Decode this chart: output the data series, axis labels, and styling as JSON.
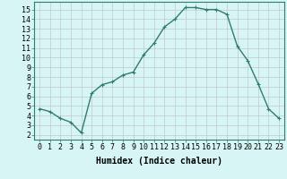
{
  "x": [
    0,
    1,
    2,
    3,
    4,
    5,
    6,
    7,
    8,
    9,
    10,
    11,
    12,
    13,
    14,
    15,
    16,
    17,
    18,
    19,
    20,
    21,
    22,
    23
  ],
  "y": [
    4.7,
    4.4,
    3.7,
    3.3,
    2.2,
    6.3,
    7.2,
    7.5,
    8.2,
    8.5,
    10.3,
    11.5,
    13.2,
    14.0,
    15.2,
    15.2,
    15.0,
    15.0,
    14.5,
    11.2,
    9.7,
    7.3,
    4.7,
    3.7
  ],
  "line_color": "#2e7d6e",
  "marker": "+",
  "bg_color": "#d8f5f5",
  "grid_color": "#c0c8c8",
  "xlabel": "Humidex (Indice chaleur)",
  "xlim": [
    -0.5,
    23.5
  ],
  "ylim": [
    1.5,
    15.8
  ],
  "xticks": [
    0,
    1,
    2,
    3,
    4,
    5,
    6,
    7,
    8,
    9,
    10,
    11,
    12,
    13,
    14,
    15,
    16,
    17,
    18,
    19,
    20,
    21,
    22,
    23
  ],
  "yticks": [
    2,
    3,
    4,
    5,
    6,
    7,
    8,
    9,
    10,
    11,
    12,
    13,
    14,
    15
  ],
  "xlabel_fontsize": 7,
  "tick_fontsize": 6,
  "linewidth": 1.0
}
